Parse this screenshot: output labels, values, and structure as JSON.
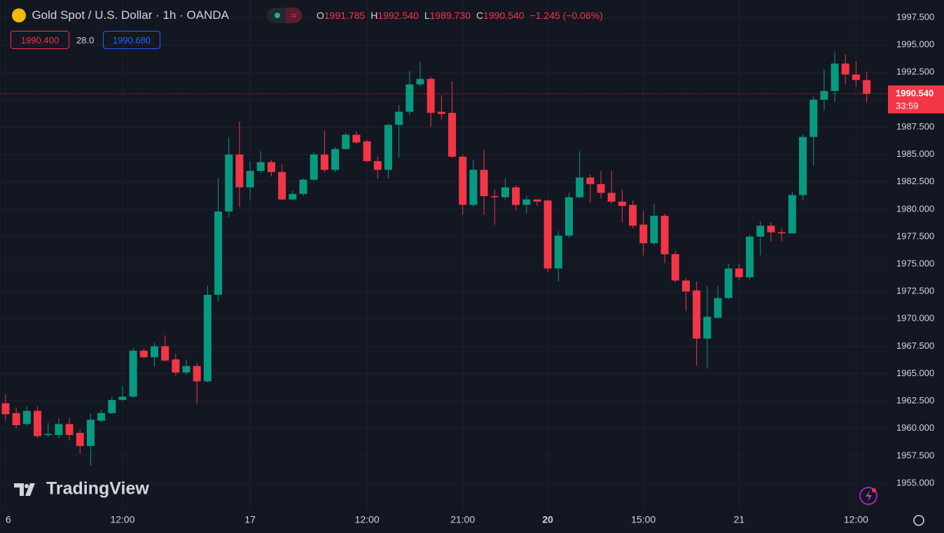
{
  "header": {
    "symbol": "Gold Spot / U.S. Dollar · 1h · OANDA",
    "ohlc": [
      {
        "letter": "O",
        "value": "1991.785"
      },
      {
        "letter": "H",
        "value": "1992.540"
      },
      {
        "letter": "L",
        "value": "1989.730"
      },
      {
        "letter": "C",
        "value": "1990.540"
      }
    ],
    "change": "−1.245 (−0.06%)",
    "bid": "1990.400",
    "spread": "28.0",
    "ask": "1990.680"
  },
  "logo": "TradingView",
  "chart_data": {
    "type": "candlestick",
    "up_color": "#089981",
    "down_color": "#f23645",
    "grid": true,
    "categories": [
      "6",
      null,
      null,
      null,
      null,
      null,
      null,
      null,
      null,
      null,
      null,
      "12:00",
      null,
      null,
      null,
      null,
      null,
      null,
      null,
      null,
      null,
      null,
      null,
      "17",
      null,
      null,
      null,
      null,
      null,
      null,
      null,
      null,
      null,
      null,
      "12:00",
      null,
      null,
      null,
      null,
      null,
      null,
      null,
      null,
      "21:00",
      null,
      null,
      null,
      null,
      null,
      null,
      null,
      "20",
      null,
      null,
      null,
      null,
      null,
      null,
      null,
      null,
      "15:00",
      null,
      null,
      null,
      null,
      null,
      null,
      null,
      null,
      "21",
      null,
      null,
      null,
      null,
      null,
      null,
      null,
      null,
      null,
      null,
      "12:00",
      null
    ],
    "open": [
      1962.3,
      1961.4,
      1960.4,
      1961.6,
      1959.4,
      1959.4,
      1960.4,
      1959.6,
      1958.4,
      1960.7,
      1961.4,
      1962.6,
      1962.9,
      1967.1,
      1966.5,
      1967.5,
      1966.3,
      1965.1,
      1965.7,
      1964.3,
      1972.2,
      1979.8,
      1985.0,
      1982.0,
      1983.5,
      1984.3,
      1983.4,
      1980.9,
      1981.4,
      1982.7,
      1985.0,
      1983.6,
      1985.5,
      1986.8,
      1986.2,
      1984.4,
      1983.6,
      1987.7,
      1988.9,
      1991.4,
      1991.9,
      1988.9,
      1988.8,
      1984.8,
      1980.4,
      1983.6,
      1981.2,
      1981.1,
      1982.0,
      1980.4,
      1980.9,
      1980.8,
      1974.6,
      1977.6,
      1981.1,
      1982.9,
      1982.3,
      1981.5,
      1980.7,
      1980.4,
      1978.6,
      1976.9,
      1979.4,
      1975.9,
      1973.5,
      1972.6,
      1968.2,
      1970.1,
      1971.9,
      1974.6,
      1973.8,
      1977.5,
      1978.5,
      1977.9,
      1977.8,
      1981.3,
      1986.6,
      1990.0,
      1990.8,
      1993.3,
      1992.3,
      1991.785
    ],
    "high": [
      1963.1,
      1961.9,
      1962.0,
      1962.0,
      1960.5,
      1960.9,
      1961.0,
      1959.9,
      1961.4,
      1961.7,
      1962.9,
      1963.9,
      1967.4,
      1967.3,
      1967.8,
      1968.5,
      1966.8,
      1966.3,
      1966.0,
      1973.0,
      1982.8,
      1986.6,
      1988.0,
      1984.4,
      1985.3,
      1984.5,
      1984.1,
      1981.7,
      1982.8,
      1985.2,
      1987.2,
      1985.7,
      1987.0,
      1987.1,
      1986.3,
      1984.8,
      1987.8,
      1989.5,
      1992.6,
      1993.5,
      1992.1,
      1990.4,
      1991.7,
      1985.0,
      1984.5,
      1985.4,
      1981.8,
      1982.8,
      1982.2,
      1981.2,
      1980.9,
      1980.9,
      1978.0,
      1981.5,
      1985.3,
      1983.2,
      1983.5,
      1983.5,
      1981.8,
      1980.8,
      1979.9,
      1980.5,
      1979.6,
      1976.2,
      1973.7,
      1973.4,
      1973.0,
      1973.0,
      1975.0,
      1975.0,
      1977.7,
      1978.9,
      1978.8,
      1978.3,
      1981.6,
      1986.8,
      1990.3,
      1992.8,
      1994.4,
      1994.1,
      1993.5,
      1992.54
    ],
    "low": [
      1960.7,
      1960.0,
      1960.2,
      1959.1,
      1959.2,
      1959.1,
      1958.9,
      1957.7,
      1956.6,
      1960.6,
      1961.3,
      1962.5,
      1962.8,
      1966.4,
      1965.6,
      1966.1,
      1964.8,
      1964.9,
      1962.2,
      1964.2,
      1971.6,
      1979.3,
      1980.2,
      1980.9,
      1983.3,
      1983.0,
      1980.8,
      1980.8,
      1981.2,
      1982.6,
      1983.4,
      1983.4,
      1985.4,
      1986.0,
      1984.3,
      1982.8,
      1982.8,
      1984.7,
      1988.6,
      1991.2,
      1987.5,
      1988.2,
      1984.7,
      1979.5,
      1980.2,
      1979.5,
      1978.6,
      1980.9,
      1979.9,
      1979.6,
      1980.3,
      1974.3,
      1973.4,
      1977.4,
      1981.0,
      1980.6,
      1981.0,
      1980.5,
      1978.8,
      1978.3,
      1975.8,
      1976.7,
      1975.1,
      1973.3,
      1970.7,
      1965.7,
      1965.5,
      1970.0,
      1971.8,
      1973.5,
      1973.6,
      1975.8,
      1977.1,
      1977.1,
      1977.8,
      1980.8,
      1984.0,
      1989.0,
      1989.8,
      1991.4,
      1991.2,
      1989.73
    ],
    "close": [
      1961.3,
      1960.3,
      1961.6,
      1959.3,
      1959.5,
      1960.4,
      1959.4,
      1958.4,
      1960.8,
      1961.4,
      1962.6,
      1962.9,
      1967.1,
      1966.5,
      1967.5,
      1966.2,
      1965.1,
      1965.7,
      1964.3,
      1972.2,
      1979.8,
      1985.0,
      1982.0,
      1983.5,
      1984.3,
      1983.4,
      1980.9,
      1981.4,
      1982.7,
      1985.0,
      1983.6,
      1985.5,
      1986.8,
      1986.1,
      1984.4,
      1983.6,
      1987.7,
      1988.9,
      1991.4,
      1991.9,
      1988.8,
      1988.7,
      1984.8,
      1980.4,
      1983.6,
      1981.2,
      1981.1,
      1982.0,
      1980.4,
      1980.9,
      1980.7,
      1974.6,
      1977.6,
      1981.1,
      1982.9,
      1982.3,
      1981.5,
      1980.7,
      1980.3,
      1978.5,
      1976.9,
      1979.4,
      1975.9,
      1973.5,
      1972.5,
      1968.2,
      1970.2,
      1971.9,
      1974.6,
      1973.8,
      1977.5,
      1978.5,
      1977.9,
      1977.8,
      1981.3,
      1986.6,
      1990.0,
      1990.8,
      1993.3,
      1992.3,
      1991.8,
      1990.54
    ],
    "ylim": [
      1952.44,
      1999.1
    ],
    "yticks": [
      {
        "value": 1955,
        "label": "1955.000"
      },
      {
        "value": 1957.5,
        "label": "1957.500"
      },
      {
        "value": 1960,
        "label": "1960.000"
      },
      {
        "value": 1962.5,
        "label": "1962.500"
      },
      {
        "value": 1965,
        "label": "1965.000"
      },
      {
        "value": 1967.5,
        "label": "1967.500"
      },
      {
        "value": 1970,
        "label": "1970.000"
      },
      {
        "value": 1972.5,
        "label": "1972.500"
      },
      {
        "value": 1975,
        "label": "1975.000"
      },
      {
        "value": 1977.5,
        "label": "1977.500"
      },
      {
        "value": 1980,
        "label": "1980.000"
      },
      {
        "value": 1982.5,
        "label": "1982.500"
      },
      {
        "value": 1985,
        "label": "1985.000"
      },
      {
        "value": 1987.5,
        "label": "1987.500"
      },
      {
        "value": 1990,
        "label": "1990.000"
      },
      {
        "value": 1992.5,
        "label": "1992.500"
      },
      {
        "value": 1995,
        "label": "1995.000"
      },
      {
        "value": 1997.5,
        "label": "1997.500"
      }
    ],
    "last_price": {
      "value": 1990.54,
      "label": "1990.540"
    },
    "countdown": "33:59"
  }
}
